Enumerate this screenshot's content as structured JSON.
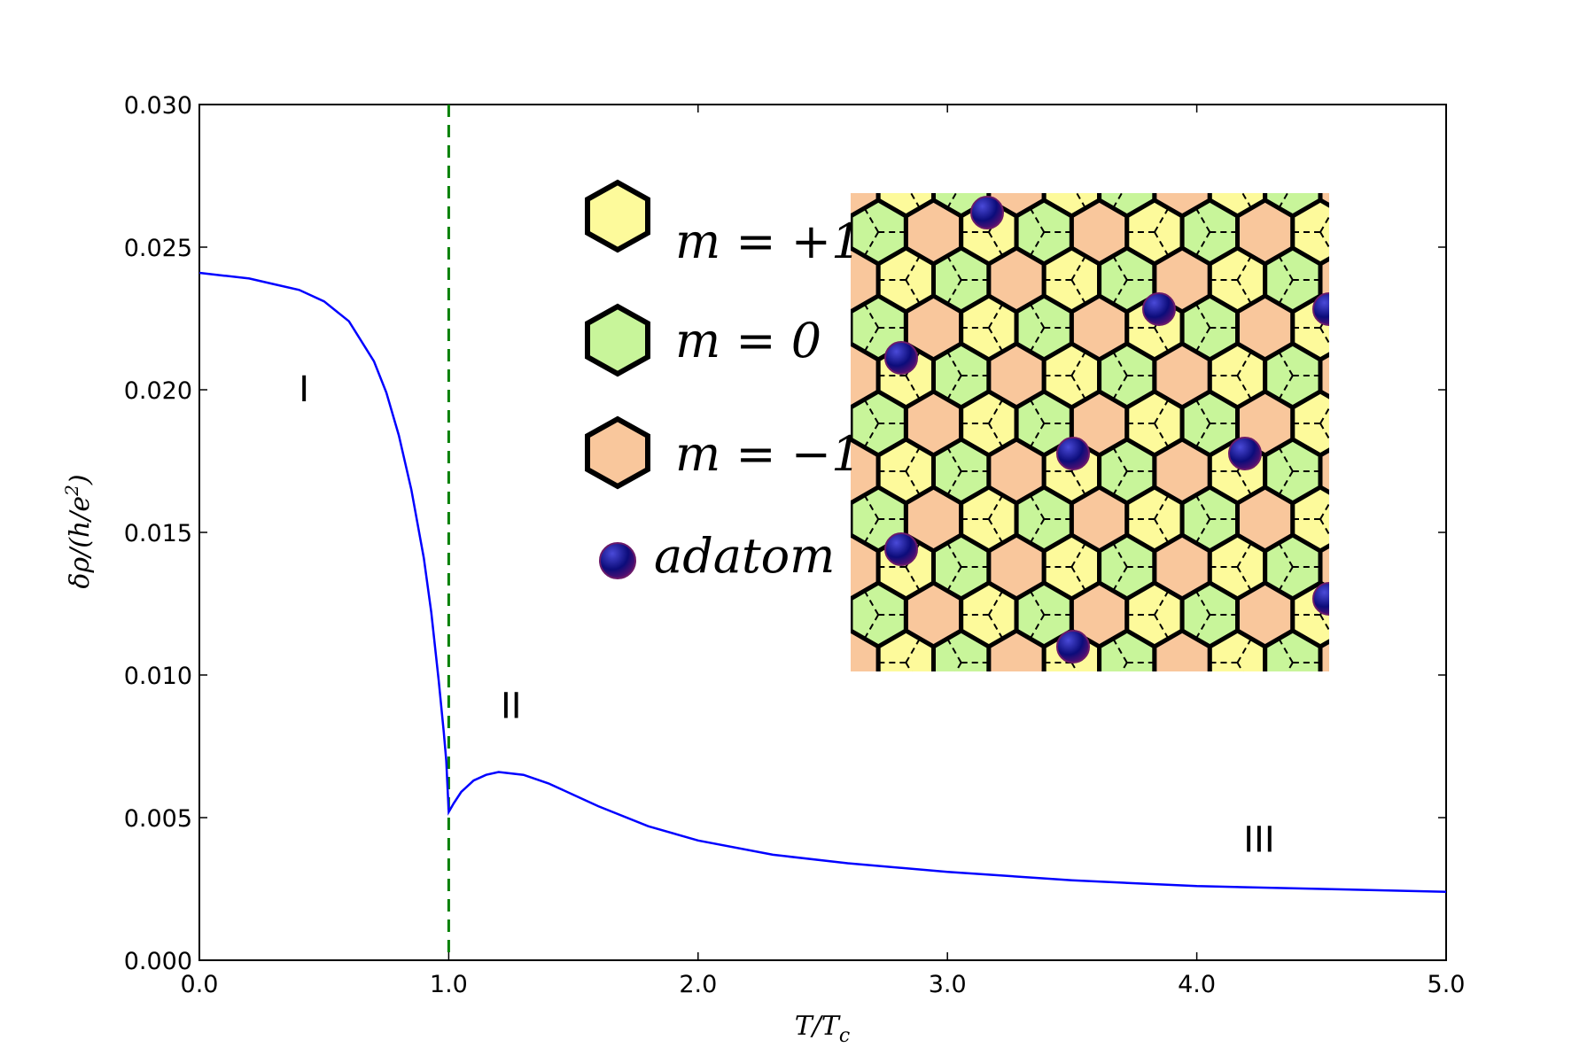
{
  "chart_data": {
    "type": "line",
    "xlabel": "T/T_c",
    "ylabel": "δρ/(h/e²)",
    "xlim": [
      0.0,
      5.0
    ],
    "ylim": [
      0.0,
      0.03
    ],
    "x_ticks": [
      "0.0",
      "1.0",
      "2.0",
      "3.0",
      "4.0",
      "5.0"
    ],
    "y_ticks": [
      "0.000",
      "0.005",
      "0.010",
      "0.015",
      "0.020",
      "0.025",
      "0.030"
    ],
    "grid": false,
    "series": [
      {
        "color": "#0000ff",
        "x": [
          0.0,
          0.1,
          0.2,
          0.3,
          0.4,
          0.5,
          0.6,
          0.7,
          0.75,
          0.8,
          0.85,
          0.9,
          0.93,
          0.96,
          0.98,
          0.99,
          1.0,
          1.02,
          1.05,
          1.1,
          1.15,
          1.2,
          1.3,
          1.4,
          1.5,
          1.6,
          1.8,
          2.0,
          2.3,
          2.6,
          3.0,
          3.5,
          4.0,
          4.5,
          5.0
        ],
        "y": [
          0.0241,
          0.024,
          0.0239,
          0.0237,
          0.0235,
          0.0231,
          0.0224,
          0.021,
          0.0199,
          0.0184,
          0.0165,
          0.0141,
          0.0122,
          0.0098,
          0.008,
          0.007,
          0.0052,
          0.0055,
          0.0059,
          0.0063,
          0.0065,
          0.0066,
          0.0065,
          0.0062,
          0.0058,
          0.0054,
          0.0047,
          0.0042,
          0.0037,
          0.0034,
          0.0031,
          0.0028,
          0.0026,
          0.0025,
          0.0024
        ]
      }
    ],
    "vline": {
      "x": 1.0,
      "color": "#008000",
      "style": "dashed"
    },
    "annotations": [
      {
        "text": "I",
        "x": 0.42,
        "y": 0.0196
      },
      {
        "text": "II",
        "x": 1.25,
        "y": 0.0085
      },
      {
        "text": "III",
        "x": 4.25,
        "y": 0.0038
      }
    ]
  },
  "legend": {
    "items": [
      {
        "label": "m = +1",
        "color": "#fdfa9b"
      },
      {
        "label": "m = 0",
        "color": "#c8f59a"
      },
      {
        "label": "m = −1",
        "color": "#f9c79c"
      },
      {
        "label": "adatom",
        "color": "#1a1a9e"
      }
    ]
  },
  "lattice": {
    "colors": {
      "m_plus": "#fdfa9b",
      "m_zero": "#c8f59a",
      "m_minus": "#f9c79c",
      "adatom": "#1a1a9e"
    }
  }
}
